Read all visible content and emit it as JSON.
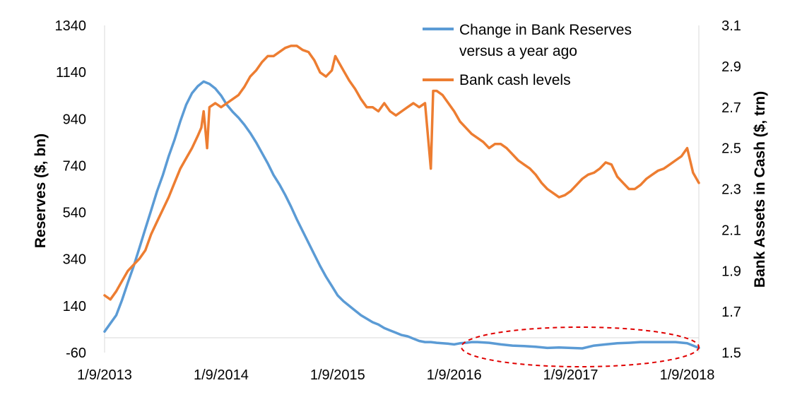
{
  "chart_data": {
    "type": "line",
    "title": "",
    "xlabel": "",
    "ylabel": "Reserves ($, bn)",
    "y2label": "Bank Assets in Cash ($, trn)",
    "xticks": [
      "1/9/2013",
      "1/9/2014",
      "1/9/2015",
      "1/9/2016",
      "1/9/2017",
      "1/9/2018"
    ],
    "xlim": [
      2013.0,
      2018.1
    ],
    "ylim": [
      -60,
      1340
    ],
    "yticks": [
      -60,
      140,
      340,
      540,
      740,
      940,
      1140,
      1340
    ],
    "y2lim": [
      1.5,
      3.1
    ],
    "y2ticks": [
      1.5,
      1.7,
      1.9,
      2.1,
      2.3,
      2.5,
      2.7,
      2.9,
      3.1
    ],
    "y2tick_labels": [
      "1.5",
      "1.7",
      "1.9",
      "2.1",
      "2.3",
      "2.5",
      "2.7",
      "2.9",
      "3.1"
    ],
    "grid": false,
    "legend_position": "top-right",
    "annotation": "red dashed ellipse around 2016–2018 reserve changes near zero",
    "series": [
      {
        "name": "Change in Bank Reserves versus a year ago",
        "axis": "left",
        "color": "#5B9BD5",
        "x": [
          2013.0,
          2013.05,
          2013.1,
          2013.15,
          2013.2,
          2013.25,
          2013.3,
          2013.35,
          2013.4,
          2013.45,
          2013.5,
          2013.55,
          2013.6,
          2013.65,
          2013.7,
          2013.75,
          2013.8,
          2013.85,
          2013.9,
          2013.95,
          2014.0,
          2014.05,
          2014.1,
          2014.15,
          2014.2,
          2014.25,
          2014.3,
          2014.35,
          2014.4,
          2014.45,
          2014.5,
          2014.55,
          2014.6,
          2014.65,
          2014.7,
          2014.75,
          2014.8,
          2014.85,
          2014.9,
          2014.95,
          2015.0,
          2015.05,
          2015.1,
          2015.15,
          2015.2,
          2015.25,
          2015.3,
          2015.35,
          2015.4,
          2015.45,
          2015.5,
          2015.55,
          2015.6,
          2015.65,
          2015.7,
          2015.75,
          2015.8,
          2015.85,
          2015.9,
          2015.95,
          2016.0,
          2016.05,
          2016.1,
          2016.15,
          2016.2,
          2016.3,
          2016.4,
          2016.5,
          2016.6,
          2016.7,
          2016.8,
          2016.9,
          2017.0,
          2017.1,
          2017.2,
          2017.3,
          2017.4,
          2017.5,
          2017.6,
          2017.7,
          2017.8,
          2017.9,
          2018.0,
          2018.1
        ],
        "values": [
          30,
          65,
          100,
          165,
          240,
          310,
          390,
          470,
          550,
          630,
          700,
          780,
          850,
          930,
          1000,
          1050,
          1080,
          1100,
          1090,
          1070,
          1040,
          1000,
          970,
          945,
          915,
          880,
          840,
          795,
          750,
          700,
          660,
          615,
          565,
          510,
          460,
          410,
          360,
          310,
          265,
          225,
          185,
          160,
          140,
          120,
          100,
          85,
          70,
          60,
          45,
          35,
          25,
          15,
          10,
          0,
          -10,
          -15,
          -15,
          -18,
          -20,
          -22,
          -25,
          -20,
          -18,
          -15,
          -15,
          -18,
          -25,
          -30,
          -32,
          -35,
          -40,
          -38,
          -40,
          -42,
          -30,
          -25,
          -20,
          -18,
          -15,
          -15,
          -15,
          -15,
          -20,
          -40
        ]
      },
      {
        "name": "Bank cash levels",
        "axis": "right",
        "color": "#ED7D31",
        "x": [
          2013.0,
          2013.05,
          2013.1,
          2013.15,
          2013.2,
          2013.25,
          2013.3,
          2013.35,
          2013.4,
          2013.45,
          2013.5,
          2013.55,
          2013.6,
          2013.65,
          2013.7,
          2013.75,
          2013.8,
          2013.83,
          2013.85,
          2013.88,
          2013.9,
          2013.95,
          2014.0,
          2014.05,
          2014.1,
          2014.15,
          2014.2,
          2014.25,
          2014.3,
          2014.35,
          2014.4,
          2014.45,
          2014.5,
          2014.55,
          2014.6,
          2014.65,
          2014.7,
          2014.75,
          2014.8,
          2014.85,
          2014.9,
          2014.95,
          2014.98,
          2015.0,
          2015.05,
          2015.1,
          2015.15,
          2015.2,
          2015.25,
          2015.3,
          2015.35,
          2015.4,
          2015.45,
          2015.5,
          2015.55,
          2015.6,
          2015.65,
          2015.7,
          2015.75,
          2015.8,
          2015.82,
          2015.85,
          2015.9,
          2015.95,
          2016.0,
          2016.05,
          2016.1,
          2016.15,
          2016.2,
          2016.25,
          2016.3,
          2016.35,
          2016.4,
          2016.45,
          2016.5,
          2016.55,
          2016.6,
          2016.65,
          2016.7,
          2016.75,
          2016.8,
          2016.85,
          2016.9,
          2016.95,
          2017.0,
          2017.05,
          2017.1,
          2017.15,
          2017.2,
          2017.25,
          2017.3,
          2017.35,
          2017.4,
          2017.45,
          2017.5,
          2017.55,
          2017.6,
          2017.65,
          2017.7,
          2017.75,
          2017.8,
          2017.85,
          2017.9,
          2017.95,
          2018.0,
          2018.05,
          2018.1
        ],
        "values": [
          1.78,
          1.76,
          1.8,
          1.85,
          1.9,
          1.93,
          1.96,
          2.0,
          2.08,
          2.14,
          2.2,
          2.26,
          2.33,
          2.4,
          2.45,
          2.5,
          2.56,
          2.6,
          2.68,
          2.5,
          2.7,
          2.72,
          2.7,
          2.72,
          2.74,
          2.76,
          2.8,
          2.85,
          2.88,
          2.92,
          2.95,
          2.95,
          2.97,
          2.99,
          3.0,
          3.0,
          2.98,
          2.97,
          2.93,
          2.87,
          2.85,
          2.88,
          2.95,
          2.93,
          2.88,
          2.83,
          2.79,
          2.74,
          2.7,
          2.7,
          2.68,
          2.72,
          2.68,
          2.66,
          2.68,
          2.7,
          2.72,
          2.7,
          2.72,
          2.4,
          2.78,
          2.78,
          2.76,
          2.72,
          2.68,
          2.63,
          2.6,
          2.57,
          2.55,
          2.53,
          2.5,
          2.52,
          2.52,
          2.5,
          2.47,
          2.44,
          2.42,
          2.4,
          2.37,
          2.33,
          2.3,
          2.28,
          2.26,
          2.27,
          2.29,
          2.32,
          2.35,
          2.37,
          2.38,
          2.4,
          2.43,
          2.42,
          2.36,
          2.33,
          2.3,
          2.3,
          2.32,
          2.35,
          2.37,
          2.39,
          2.4,
          2.42,
          2.44,
          2.46,
          2.5,
          2.38,
          2.33
        ]
      }
    ]
  }
}
